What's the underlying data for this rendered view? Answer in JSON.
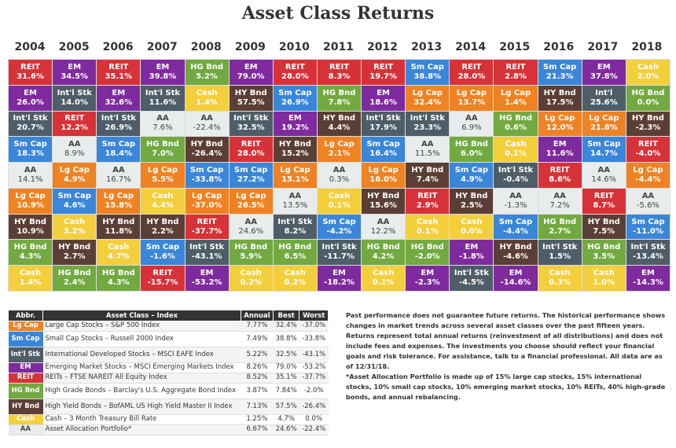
{
  "title": "Asset Class Returns",
  "chart_data": {
    "type": "table",
    "title": "Asset Class Returns",
    "years": [
      "2004",
      "2005",
      "2006",
      "2007",
      "2008",
      "2009",
      "2010",
      "2011",
      "2012",
      "2013",
      "2014",
      "2015",
      "2016",
      "2017",
      "2018"
    ],
    "columns": [
      [
        [
          "REIT",
          "31.6%"
        ],
        [
          "EM",
          "26.0%"
        ],
        [
          "Int'l Stk",
          "20.7%"
        ],
        [
          "Sm Cap",
          "18.3%"
        ],
        [
          "AA",
          "14.1%"
        ],
        [
          "Lg Cap",
          "10.9%"
        ],
        [
          "HY Bnd",
          "10.9%"
        ],
        [
          "HG Bnd",
          "4.3%"
        ],
        [
          "Cash",
          "1.4%"
        ]
      ],
      [
        [
          "EM",
          "34.5%"
        ],
        [
          "Int'l Stk",
          "14.0%"
        ],
        [
          "REIT",
          "12.2%"
        ],
        [
          "AA",
          "8.9%"
        ],
        [
          "Lg Cap",
          "4.9%"
        ],
        [
          "Sm Cap",
          "4.6%"
        ],
        [
          "Cash",
          "3.2%"
        ],
        [
          "HY Bnd",
          "2.7%"
        ],
        [
          "HG Bnd",
          "2.4%"
        ]
      ],
      [
        [
          "REIT",
          "35.1%"
        ],
        [
          "EM",
          "32.6%"
        ],
        [
          "Int'l Stk",
          "26.9%"
        ],
        [
          "Sm Cap",
          "18.4%"
        ],
        [
          "AA",
          "16.7%"
        ],
        [
          "Lg Cap",
          "15.8%"
        ],
        [
          "HY Bnd",
          "11.8%"
        ],
        [
          "Cash",
          "4.7%"
        ],
        [
          "HG Bnd",
          "4.3%"
        ]
      ],
      [
        [
          "EM",
          "39.8%"
        ],
        [
          "Int'l Stk",
          "11.6%"
        ],
        [
          "AA",
          "7.6%"
        ],
        [
          "HG Bnd",
          "7.0%"
        ],
        [
          "Lg Cap",
          "5.5%"
        ],
        [
          "Cash",
          "4.4%"
        ],
        [
          "HY Bnd",
          "2.2%"
        ],
        [
          "Sm Cap",
          "-1.6%"
        ],
        [
          "REIT",
          "-15.7%"
        ]
      ],
      [
        [
          "HG Bnd",
          "5.2%"
        ],
        [
          "Cash",
          "1.4%"
        ],
        [
          "AA",
          "-22.4%"
        ],
        [
          "HY Bnd",
          "-26.4%"
        ],
        [
          "Sm Cap",
          "-33.8%"
        ],
        [
          "Lg Cap",
          "-37.0%"
        ],
        [
          "REIT",
          "-37.7%"
        ],
        [
          "Int'l Stk",
          "-43.1%"
        ],
        [
          "EM",
          "-53.2%"
        ]
      ],
      [
        [
          "EM",
          "79.0%"
        ],
        [
          "HY Bnd",
          "57.5%"
        ],
        [
          "Int'l Stk",
          "32.5%"
        ],
        [
          "REIT",
          "28.0%"
        ],
        [
          "Sm Cap",
          "27.2%"
        ],
        [
          "Lg Cap",
          "26.5%"
        ],
        [
          "AA",
          "24.6%"
        ],
        [
          "HG Bnd",
          "5.9%"
        ],
        [
          "Cash",
          "0.2%"
        ]
      ],
      [
        [
          "REIT",
          "28.0%"
        ],
        [
          "Sm Cap",
          "26.9%"
        ],
        [
          "EM",
          "19.2%"
        ],
        [
          "HY Bnd",
          "15.2%"
        ],
        [
          "Lg Cap",
          "15.1%"
        ],
        [
          "AA",
          "13.5%"
        ],
        [
          "Int'l Stk",
          "8.2%"
        ],
        [
          "HG Bnd",
          "6.5%"
        ],
        [
          "Cash",
          "0.2%"
        ]
      ],
      [
        [
          "REIT",
          "8.3%"
        ],
        [
          "HG Bnd",
          "7.8%"
        ],
        [
          "HY Bnd",
          "4.4%"
        ],
        [
          "Lg Cap",
          "2.1%"
        ],
        [
          "AA",
          "0.3%"
        ],
        [
          "Cash",
          "0.1%"
        ],
        [
          "Sm Cap",
          "-4.2%"
        ],
        [
          "Int'l Stk",
          "-11.7%"
        ],
        [
          "EM",
          "-18.2%"
        ]
      ],
      [
        [
          "REIT",
          "19.7%"
        ],
        [
          "EM",
          "18.6%"
        ],
        [
          "Int'l Stk",
          "17.9%"
        ],
        [
          "Sm Cap",
          "16.4%"
        ],
        [
          "Lg Cap",
          "16.0%"
        ],
        [
          "HY Bnd",
          "15.6%"
        ],
        [
          "AA",
          "12.2%"
        ],
        [
          "HG Bnd",
          "4.2%"
        ],
        [
          "Cash",
          "0.1%"
        ]
      ],
      [
        [
          "Sm Cap",
          "38.8%"
        ],
        [
          "Lg Cap",
          "32.4%"
        ],
        [
          "Int'l Stk",
          "23.3%"
        ],
        [
          "AA",
          "11.5%"
        ],
        [
          "HY Bnd",
          "7.4%"
        ],
        [
          "REIT",
          "2.9%"
        ],
        [
          "Cash",
          "0.1%"
        ],
        [
          "HG Bnd",
          "-2.0%"
        ],
        [
          "EM",
          "-2.3%"
        ]
      ],
      [
        [
          "REIT",
          "28.0%"
        ],
        [
          "Lg Cap",
          "13.7%"
        ],
        [
          "AA",
          "6.9%"
        ],
        [
          "HG Bnd",
          "6.0%"
        ],
        [
          "Sm Cap",
          "4.9%"
        ],
        [
          "HY Bnd",
          "2.5%"
        ],
        [
          "Cash",
          "0.0%"
        ],
        [
          "EM",
          "-1.8%"
        ],
        [
          "Int'l Stk",
          "-4.5%"
        ]
      ],
      [
        [
          "REIT",
          "2.8%"
        ],
        [
          "Lg Cap",
          "1.4%"
        ],
        [
          "HG Bnd",
          "0.6%"
        ],
        [
          "Cash",
          "0.1%"
        ],
        [
          "Int'l Stk",
          "-0.4%"
        ],
        [
          "AA",
          "-1.3%"
        ],
        [
          "Sm Cap",
          "-4.4%"
        ],
        [
          "HY Bnd",
          "-4.6%"
        ],
        [
          "EM",
          "-14.6%"
        ]
      ],
      [
        [
          "Sm Cap",
          "21.3%"
        ],
        [
          "HY Bnd",
          "17.5%"
        ],
        [
          "Lg Cap",
          "12.0%"
        ],
        [
          "EM",
          "11.6%"
        ],
        [
          "REIT",
          "8.6%"
        ],
        [
          "AA",
          "7.2%"
        ],
        [
          "HG Bnd",
          "2.7%"
        ],
        [
          "Int'l Stk",
          "1.5%"
        ],
        [
          "Cash",
          "0.3%"
        ]
      ],
      [
        [
          "EM",
          "37.8%"
        ],
        [
          "Int'l",
          "25.6%"
        ],
        [
          "Lg Cap",
          "21.8%"
        ],
        [
          "Sm Cap",
          "14.7%"
        ],
        [
          "AA",
          "14.6%"
        ],
        [
          "REIT",
          "8.7%"
        ],
        [
          "HY Bnd",
          "7.5%"
        ],
        [
          "HG Bnd",
          "3.5%"
        ],
        [
          "Cash",
          "1.0%"
        ]
      ],
      [
        [
          "Cash",
          "2.0%"
        ],
        [
          "HG Bnd",
          "0.0%"
        ],
        [
          "HY Bnd",
          "-2.3%"
        ],
        [
          "REIT",
          "-4.0%"
        ],
        [
          "Lg Cap",
          "-4.4%"
        ],
        [
          "AA",
          "-5.6%"
        ],
        [
          "Sm Cap",
          "-11.0%"
        ],
        [
          "Int'l Stk",
          "-13.4%"
        ],
        [
          "EM",
          "-14.3%"
        ]
      ]
    ]
  },
  "colors": {
    "REIT": "#d63238",
    "EM": "#7f2a9e",
    "Int'l": "#4e5d67",
    "Sm Cap": "#3a86d9",
    "AA": "#e9ecec",
    "Lg Cap": "#ef8323",
    "HY Bnd": "#5b3f36",
    "HG Bnd": "#72a940",
    "Cash": "#f4cf3c"
  },
  "legend_table": {
    "headers": [
      "Abbr.",
      "Asset Class – Index",
      "Annual",
      "Best",
      "Worst"
    ],
    "rows": [
      {
        "abbr": "Lg Cap",
        "name": "Large Cap Stocks – S&P 500 Index",
        "annual": "7.77%",
        "best": "32.4%",
        "worst": "-37.0%"
      },
      {
        "abbr": "Sm Cap",
        "name": "Small Cap Stocks – Russell 2000 Index",
        "annual": "7.49%",
        "best": "38.8%",
        "worst": "-33.8%"
      },
      {
        "abbr": "Int'l Stk",
        "name": "International Developed Stocks – MSCI EAFE Index",
        "annual": "5.22%",
        "best": "32.5%",
        "worst": "-43.1%"
      },
      {
        "abbr": "EM",
        "name": "Emerging Market Stocks – MSCI Emerging Markets Index",
        "annual": "8.26%",
        "best": "79.0%",
        "worst": "-53.2%"
      },
      {
        "abbr": "REIT",
        "name": "REITs – FTSE NAREIT All Equity Index",
        "annual": "8.52%",
        "best": "35.1%",
        "worst": "-37.7%"
      },
      {
        "abbr": "HG Bnd",
        "name": "High Grade Bonds – Barclay's U.S. Aggregate Bond Index",
        "annual": "3.87%",
        "best": "7.84%",
        "worst": "-2.0%"
      },
      {
        "abbr": "HY Bnd",
        "name": "High Yield Bonds – BofAML US High Yield Master II Index",
        "annual": "7.13%",
        "best": "57.5%",
        "worst": "-26.4%"
      },
      {
        "abbr": "Cash",
        "name": "Cash – 3 Month Treasury Bill Rate",
        "annual": "1.25%",
        "best": "4.7%",
        "worst": "0.0%"
      },
      {
        "abbr": "AA",
        "name": "Asset Allocation Portfolio*",
        "annual": "6.67%",
        "best": "24.6%",
        "worst": "-22.4%"
      }
    ]
  },
  "note": {
    "disclaimer": "Past performance does not guarantee future returns. The historical performance shows changes in market trends across several asset classes over the past fifteen years. Returns represent total annual returns (reinvestment of all distributions) and does not include fees and expenses. The investments you choose should reflect your financial goals and risk tolerance. For assistance, talk to a financial professional. All data are as of 12/31/18.",
    "footnote": "*Asset Allocation Portfolio is made up of 15% large cap stocks, 15% international stocks, 10% small cap stocks, 10% emerging market stocks, 10% REITs, 40% high-grade bonds, and annual rebalancing."
  }
}
